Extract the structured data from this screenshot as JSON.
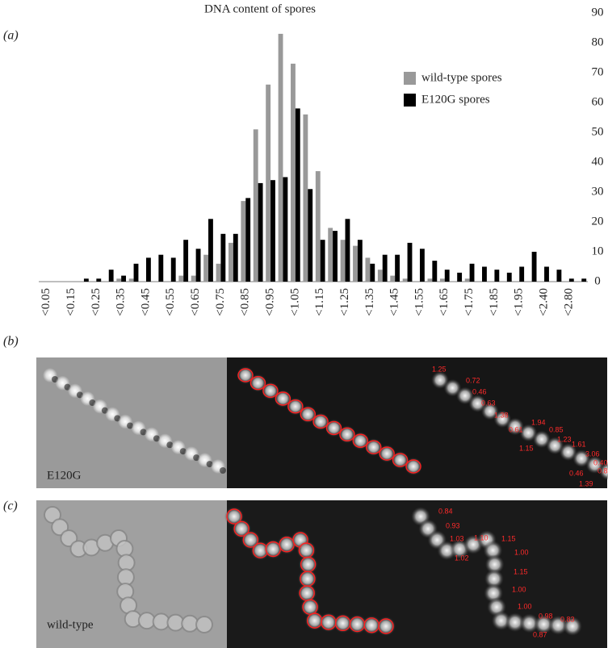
{
  "chart_data": {
    "type": "bar",
    "title": "DNA content of spores",
    "panel_label": "(a)",
    "categories": [
      "<0.05",
      null,
      "<0.15",
      null,
      "<0.25",
      null,
      "<0.35",
      null,
      "<0.45",
      null,
      "<0.55",
      null,
      "<0.65",
      null,
      "<0.75",
      null,
      "<0.85",
      null,
      "<0.95",
      null,
      "<1.05",
      null,
      "<1.15",
      null,
      "<1.25",
      null,
      "<1.35",
      null,
      "<1.45",
      null,
      "<1.55",
      null,
      "<1.65",
      null,
      "<1.75",
      null,
      "<1.85",
      null,
      "<1.95",
      null,
      "<2.40",
      null,
      "<2.80",
      null
    ],
    "series": [
      {
        "name": "wild-type spores",
        "color": "#999999",
        "values": [
          0,
          0,
          0,
          0,
          0,
          0,
          1,
          1,
          0,
          0,
          0,
          2,
          2,
          9,
          6,
          13,
          27,
          51,
          66,
          83,
          73,
          56,
          37,
          18,
          14,
          12,
          8,
          4,
          2,
          1,
          0,
          1,
          1,
          0,
          1,
          0,
          0,
          0,
          0,
          0,
          0,
          0,
          0,
          0
        ]
      },
      {
        "name": "E120G spores",
        "color": "#000000",
        "values": [
          0,
          0,
          0,
          1,
          1,
          4,
          2,
          6,
          8,
          9,
          8,
          14,
          11,
          21,
          16,
          16,
          28,
          33,
          34,
          35,
          58,
          31,
          14,
          17,
          21,
          14,
          6,
          9,
          9,
          13,
          11,
          7,
          4,
          3,
          6,
          5,
          4,
          3,
          5,
          10,
          5,
          4,
          1,
          1
        ]
      }
    ],
    "ylim": [
      0,
      90
    ],
    "yticks": [
      0,
      10,
      20,
      30,
      40,
      50,
      60,
      70,
      80,
      90
    ],
    "y_axis_side": "right",
    "grid": false
  },
  "panels": [
    {
      "label": "(b)",
      "strain": "E120G",
      "values": [
        "1.25",
        "0.72",
        "0.46",
        "0.63",
        "1.38",
        "0.61",
        "1.94",
        "0.85",
        "1.23",
        "1.61",
        "1.15",
        "3.06",
        "0.40",
        "0.83",
        "0.46",
        "1.39"
      ]
    },
    {
      "label": "(c)",
      "strain": "wild-type",
      "values": [
        "0.84",
        "0.93",
        "1.03",
        "1.10",
        "1.15",
        "1.02",
        "1.00",
        "1.15",
        "1.00",
        "1.00",
        "0.98",
        "0.83",
        "0.87"
      ]
    }
  ]
}
